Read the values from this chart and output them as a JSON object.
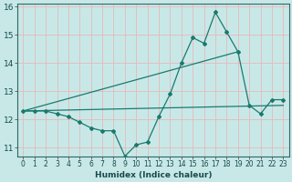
{
  "series1_x": [
    0,
    1,
    2,
    3,
    4,
    5,
    6,
    7,
    8,
    9,
    10,
    11,
    12,
    13,
    14,
    15,
    16,
    17,
    18,
    19,
    20,
    21,
    22,
    23
  ],
  "series1_y": [
    12.3,
    12.3,
    12.3,
    12.2,
    12.1,
    11.9,
    11.7,
    11.6,
    11.6,
    10.7,
    11.1,
    11.2,
    12.1,
    12.9,
    14.0,
    14.9,
    14.7,
    15.8,
    15.1,
    14.4,
    12.5,
    12.2,
    12.7,
    12.7
  ],
  "series2_x": [
    0,
    19
  ],
  "series2_y": [
    12.3,
    14.4
  ],
  "series3_x": [
    0,
    23
  ],
  "series3_y": [
    12.3,
    12.5
  ],
  "color": "#1a7a6e",
  "bg_color": "#c8e8e8",
  "grid_color_h": "#e8b8b8",
  "grid_color_v": "#e8b8b8",
  "xlabel": "Humidex (Indice chaleur)",
  "ylim": [
    10.7,
    16.1
  ],
  "xlim": [
    -0.5,
    23.5
  ],
  "yticks": [
    11,
    12,
    13,
    14,
    15,
    16
  ],
  "xticks": [
    0,
    1,
    2,
    3,
    4,
    5,
    6,
    7,
    8,
    9,
    10,
    11,
    12,
    13,
    14,
    15,
    16,
    17,
    18,
    19,
    20,
    21,
    22,
    23
  ],
  "xtick_labels": [
    "0",
    "1",
    "2",
    "3",
    "4",
    "5",
    "6",
    "7",
    "8",
    "9",
    "10",
    "11",
    "12",
    "13",
    "14",
    "15",
    "16",
    "17",
    "18",
    "19",
    "20",
    "21",
    "22",
    "23"
  ],
  "xlabel_fontsize": 6.5,
  "xlabel_fontweight": "bold",
  "tick_fontsize": 5.5,
  "ytick_fontsize": 6.5,
  "marker": "D",
  "markersize": 2.0,
  "linewidth": 0.9
}
